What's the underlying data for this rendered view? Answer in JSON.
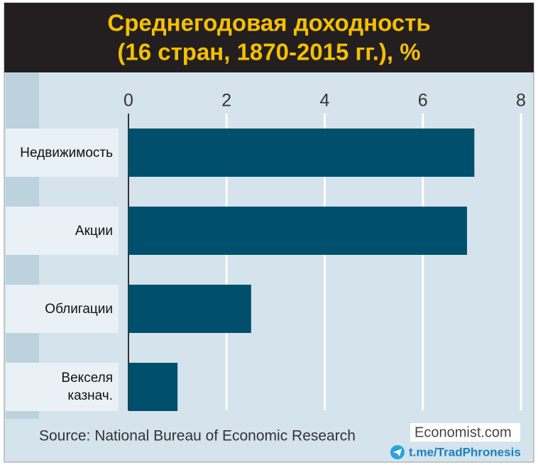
{
  "chart_data": {
    "type": "barh",
    "title": "Среднегодовая доходность",
    "subtitle": "(16 стран, 1870-2015 гг.), %",
    "categories": [
      "Недвижимость",
      "Акции",
      "Облигации",
      "Векселя казнач."
    ],
    "values": [
      7.05,
      6.9,
      2.5,
      1.0
    ],
    "color": "#00506d",
    "xlim": [
      0,
      8
    ],
    "xticks": [
      0,
      2,
      4,
      6,
      8
    ],
    "grid": true,
    "source": "Source: National Bureau of Economic Research",
    "brand": "Economist.com",
    "watermark": "t.me/TradPhronesis"
  }
}
